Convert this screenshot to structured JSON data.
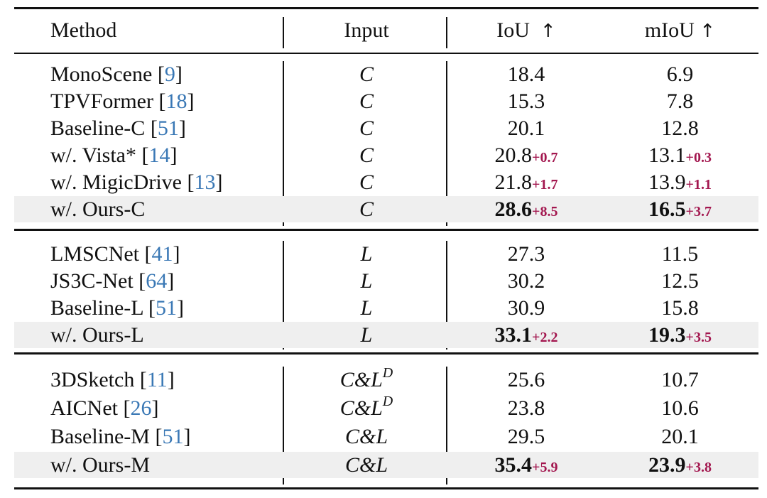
{
  "table": {
    "header": {
      "method": "Method",
      "input": "Input",
      "iou": "IoU",
      "miou": "mIoU",
      "arrow": "↑"
    },
    "groups": [
      {
        "rows": [
          {
            "method": "MonoScene ",
            "ref": "9",
            "input": "C",
            "input_sup": "",
            "iou": "18.4",
            "iou_delta": "",
            "miou": "6.9",
            "miou_delta": "",
            "highlight": false
          },
          {
            "method": "TPVFormer ",
            "ref": "18",
            "input": "C",
            "input_sup": "",
            "iou": "15.3",
            "iou_delta": "",
            "miou": "7.8",
            "miou_delta": "",
            "highlight": false
          },
          {
            "method": "Baseline-C ",
            "ref": "51",
            "input": "C",
            "input_sup": "",
            "iou": "20.1",
            "iou_delta": "",
            "miou": "12.8",
            "miou_delta": "",
            "highlight": false
          },
          {
            "method": "w/. Vista* ",
            "ref": "14",
            "input": "C",
            "input_sup": "",
            "iou": "20.8",
            "iou_delta": "+0.7",
            "miou": "13.1",
            "miou_delta": "+0.3",
            "highlight": false
          },
          {
            "method": "w/. MigicDrive ",
            "ref": "13",
            "input": "C",
            "input_sup": "",
            "iou": "21.8",
            "iou_delta": "+1.7",
            "miou": "13.9",
            "miou_delta": "+1.1",
            "highlight": false
          },
          {
            "method": "w/. Ours-C",
            "ref": "",
            "input": "C",
            "input_sup": "",
            "iou": "28.6",
            "iou_delta": "+8.5",
            "miou": "16.5",
            "miou_delta": "+3.7",
            "highlight": true
          }
        ]
      },
      {
        "rows": [
          {
            "method": "LMSCNet ",
            "ref": "41",
            "input": "L",
            "input_sup": "",
            "iou": "27.3",
            "iou_delta": "",
            "miou": "11.5",
            "miou_delta": "",
            "highlight": false
          },
          {
            "method": "JS3C-Net ",
            "ref": "64",
            "input": "L",
            "input_sup": "",
            "iou": "30.2",
            "iou_delta": "",
            "miou": "12.5",
            "miou_delta": "",
            "highlight": false
          },
          {
            "method": "Baseline-L ",
            "ref": "51",
            "input": "L",
            "input_sup": "",
            "iou": "30.9",
            "iou_delta": "",
            "miou": "15.8",
            "miou_delta": "",
            "highlight": false
          },
          {
            "method": "w/. Ours-L",
            "ref": "",
            "input": "L",
            "input_sup": "",
            "iou": "33.1",
            "iou_delta": "+2.2",
            "miou": "19.3",
            "miou_delta": "+3.5",
            "highlight": true
          }
        ]
      },
      {
        "rows": [
          {
            "method": "3DSketch ",
            "ref": "11",
            "input": "C&L",
            "input_sup": "D",
            "iou": "25.6",
            "iou_delta": "",
            "miou": "10.7",
            "miou_delta": "",
            "highlight": false
          },
          {
            "method": "AICNet ",
            "ref": "26",
            "input": "C&L",
            "input_sup": "D",
            "iou": "23.8",
            "iou_delta": "",
            "miou": "10.6",
            "miou_delta": "",
            "highlight": false
          },
          {
            "method": "Baseline-M ",
            "ref": "51",
            "input": "C&L",
            "input_sup": "",
            "iou": "29.5",
            "iou_delta": "",
            "miou": "20.1",
            "miou_delta": "",
            "highlight": false
          },
          {
            "method": "w/. Ours-M",
            "ref": "",
            "input": "C&L",
            "input_sup": "",
            "iou": "35.4",
            "iou_delta": "+5.9",
            "miou": "23.9",
            "miou_delta": "+3.8",
            "highlight": true
          }
        ]
      }
    ]
  }
}
